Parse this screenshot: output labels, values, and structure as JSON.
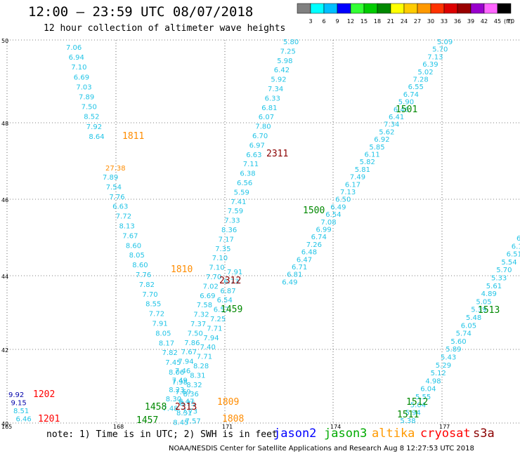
{
  "header": {
    "title": "12:00 – 23:59 UTC 08/07/2018",
    "subtitle": "12 hour collection of altimeter wave heights"
  },
  "color_scale": {
    "labels": [
      "3",
      "6",
      "9",
      "12",
      "15",
      "18",
      "21",
      "24",
      "27",
      "30",
      "33",
      "36",
      "39",
      "42",
      "45",
      "70"
    ],
    "unit": "(ft)",
    "colors": [
      "#808080",
      "#00ffff",
      "#00bfff",
      "#0000ff",
      "#33ff33",
      "#00cc00",
      "#008800",
      "#ffff00",
      "#ffcc00",
      "#ff9900",
      "#ff3300",
      "#dd0000",
      "#990000",
      "#9900cc",
      "#ff66ff",
      "#000000"
    ]
  },
  "map": {
    "lat_labels": [
      "50",
      "48",
      "46",
      "44",
      "42",
      "40"
    ],
    "lon_labels": [
      "165",
      "168",
      "171",
      "174",
      "177"
    ],
    "track_color": "#22c4e6",
    "tracks": [
      {
        "id": "t1811",
        "start": [
          94,
          67
        ],
        "step": [
          3.6,
          14.1
        ],
        "values": [
          "7.06",
          "6.94",
          "7.10",
          "6.69",
          "7.03",
          "7.89",
          "7.50",
          "8.52",
          "7.92",
          "8.64"
        ]
      },
      {
        "id": "t1810",
        "start": [
          146,
          252
        ],
        "step": [
          4.7,
          13.9
        ],
        "values": [
          "7.89",
          "7.54",
          "7.76",
          "6.63",
          "7.72",
          "8.13",
          "7.67",
          "8.60",
          "8.05",
          "8.60",
          "7.76",
          "7.82",
          "7.70",
          "8.55",
          "7.72",
          "7.91",
          "8.05",
          "8.17",
          "7.82",
          "7.45",
          "8.06",
          "7.98",
          "7.69",
          "8.47",
          "7.73",
          "7.57",
          "6.49"
        ]
      },
      {
        "id": "t2311",
        "start": [
          403,
          59
        ],
        "step": [
          -4.4,
          13.4
        ],
        "values": [
          "5.80",
          "7.25",
          "5.98",
          "6.42",
          "5.92",
          "7.34",
          "6.33",
          "6.81",
          "6.07",
          "7.80",
          "6.70",
          "6.97",
          "6.63",
          "7.11",
          "6.38",
          "6.56",
          "5.59",
          "7.41",
          "7.59",
          "7.33",
          "8.36",
          "7.17",
          "7.35",
          "7.10",
          "7.10",
          "7.70",
          "7.02",
          "6.69",
          "7.58",
          "7.32",
          "7.37",
          "7.50",
          "7.86",
          "7.67",
          "7.94",
          "7.46",
          "7.49",
          "8.23",
          "8.30",
          "7.48"
        ]
      },
      {
        "id": "t2312",
        "start": [
          323,
          387
        ],
        "step": [
          -4.8,
          13.4
        ],
        "values": [
          "7.91",
          "6.73",
          "6.87",
          "6.54",
          "6.57",
          "7.25",
          "7.71",
          "7.94",
          "7.40",
          "7.71",
          "8.28",
          "8.31",
          "8.32",
          "8.36",
          "8.75",
          "8.31",
          "8.45"
        ]
      },
      {
        "id": "t1500",
        "start": [
          622,
          59
        ],
        "step": [
          -6.9,
          10.7
        ],
        "values": [
          "5.09",
          "5.70",
          "7.13",
          "6.39",
          "5.02",
          "7.28",
          "6.55",
          "6.74",
          "5.90",
          "6.46",
          "6.41",
          "7.34",
          "5.62",
          "6.92",
          "5.85",
          "6.11",
          "5.82",
          "5.81",
          "7.49",
          "6.17",
          "7.13",
          "6.50",
          "6.49",
          "6.54",
          "7.08",
          "6.99",
          "6.74",
          "7.26",
          "6.48",
          "6.47",
          "6.71",
          "6.81",
          "6.49"
        ]
      },
      {
        "id": "t1511",
        "start": [
          735,
          339
        ],
        "step": [
          -7.2,
          11.3
        ],
        "values": [
          "6",
          "6.1",
          "6.51",
          "5.54",
          "5.70",
          "5.33",
          "5.61",
          "4.89",
          "5.05",
          "5.39",
          "5.48",
          "6.05",
          "5.74",
          "5.60",
          "5.89",
          "5.43",
          "5.29",
          "5.12",
          "4.98",
          "6.04",
          "5.55",
          "5.04",
          "5.94",
          "5.38",
          "5.90",
          "6.35",
          "5.72",
          "5.76"
        ]
      },
      {
        "id": "t1201",
        "start": [
          12,
          562
        ],
        "step": [
          3.5,
          11.5
        ],
        "values": [
          "9.92",
          "9.15",
          "8.51",
          "6.46"
        ]
      }
    ],
    "time_labels": [
      {
        "text": "1811",
        "color": "#ff8c00",
        "pos": [
          174,
          193
        ]
      },
      {
        "text": "1810",
        "color": "#ff8c00",
        "pos": [
          243,
          383
        ]
      },
      {
        "text": "1809",
        "color": "#ff8c00",
        "pos": [
          309,
          572
        ]
      },
      {
        "text": "1808",
        "color": "#ff8c00",
        "pos": [
          316,
          596
        ]
      },
      {
        "text": "2311",
        "color": "#8b0000",
        "pos": [
          379,
          218
        ]
      },
      {
        "text": "2312",
        "color": "#8b0000",
        "pos": [
          312,
          399
        ]
      },
      {
        "text": "2313",
        "color": "#8b0000",
        "pos": [
          249,
          579
        ]
      },
      {
        "text": "1501",
        "color": "#008800",
        "pos": [
          563,
          155
        ]
      },
      {
        "text": "1500",
        "color": "#008800",
        "pos": [
          431,
          299
        ]
      },
      {
        "text": "1459",
        "color": "#008800",
        "pos": [
          314,
          440
        ]
      },
      {
        "text": "1458",
        "color": "#008800",
        "pos": [
          206,
          579
        ]
      },
      {
        "text": "1457",
        "color": "#008800",
        "pos": [
          194,
          598
        ]
      },
      {
        "text": "1513",
        "color": "#008800",
        "pos": [
          680,
          441
        ]
      },
      {
        "text": "1512",
        "color": "#008800",
        "pos": [
          578,
          572
        ]
      },
      {
        "text": "1511",
        "color": "#008800",
        "pos": [
          565,
          590
        ]
      },
      {
        "text": "1202",
        "color": "#ff0000",
        "pos": [
          47,
          561
        ]
      },
      {
        "text": "1201",
        "color": "#ff0000",
        "pos": [
          54,
          596
        ]
      }
    ],
    "extra_values": [
      {
        "text": "27.38",
        "color": "#ff8c00",
        "pos": [
          150,
          239
        ]
      }
    ]
  },
  "note": "note: 1) Time is in UTC; 2) SWH is in feet",
  "legend": [
    {
      "name": "jason2",
      "color": "#0000ff"
    },
    {
      "name": "jason3",
      "color": "#00aa00"
    },
    {
      "name": "altika",
      "color": "#ff9900"
    },
    {
      "name": "cryosat",
      "color": "#ff0000"
    },
    {
      "name": "s3a",
      "color": "#8b0000"
    }
  ],
  "footer": "NOAA/NESDIS Center for Satellite Applications and Research   Aug  8 12:27:53 UTC 2018"
}
